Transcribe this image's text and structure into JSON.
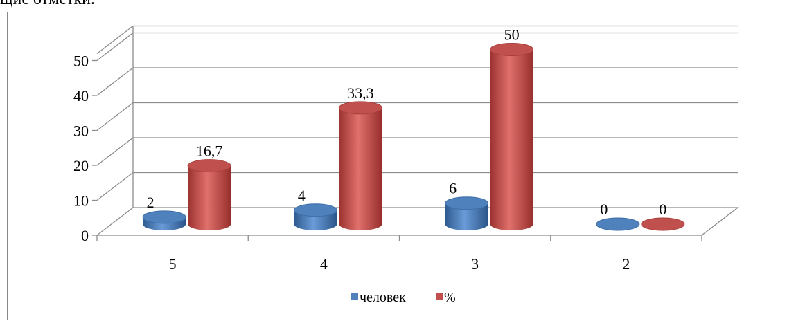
{
  "page_text": "щие отметки.",
  "chart_data": {
    "type": "bar",
    "title": "",
    "xlabel": "",
    "ylabel": "",
    "categories": [
      "5",
      "4",
      "3",
      "2"
    ],
    "series": [
      {
        "name": "человек",
        "values": [
          2,
          4,
          6,
          0
        ],
        "labels": [
          "2",
          "4",
          "6",
          "0"
        ],
        "color": "#4f81bd"
      },
      {
        "name": "%",
        "values": [
          16.7,
          33.3,
          50,
          0
        ],
        "labels": [
          "16,7",
          "33,3",
          "50",
          "0"
        ],
        "color": "#c0504d"
      }
    ],
    "ylim": [
      0,
      50
    ],
    "yticks": [
      0,
      10,
      20,
      30,
      40,
      50
    ],
    "grid": true,
    "legend_position": "bottom",
    "style": "3d-cylinder"
  }
}
